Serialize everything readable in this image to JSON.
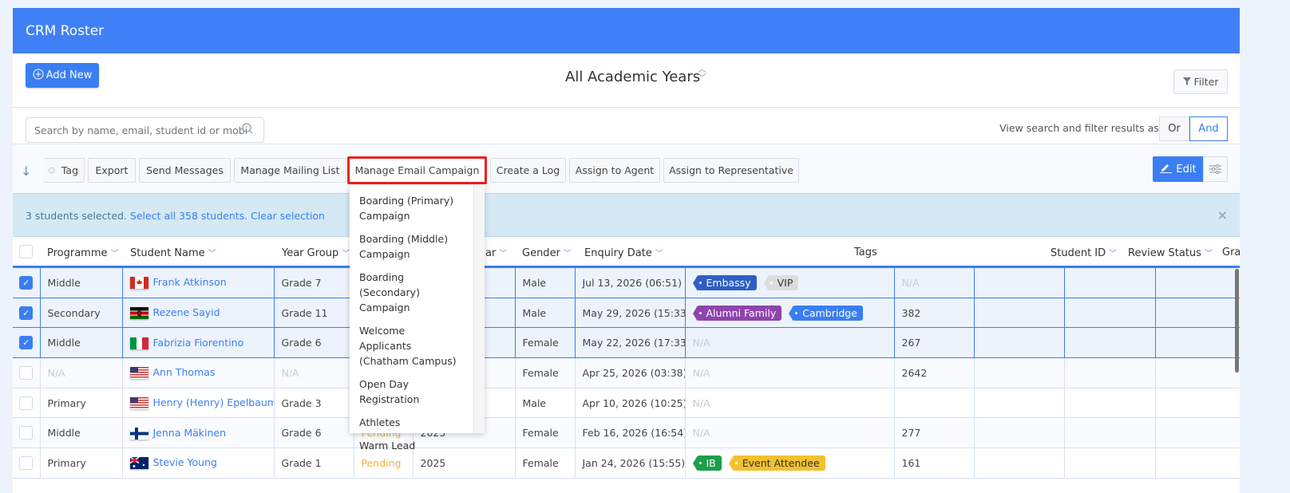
{
  "header": {
    "title": "CRM Roster"
  },
  "toolbar": {
    "add_new": "Add New",
    "academic_years": "All Academic Years",
    "filter": "Filter"
  },
  "search": {
    "placeholder": "Search by name, email, student id or mobi",
    "view_as_label": "View search and filter results as:",
    "or": "Or",
    "and": "And",
    "selected_mode": "And"
  },
  "actions": {
    "tag": "Tag",
    "export": "Export",
    "send_messages": "Send Messages",
    "manage_mailing_list": "Manage Mailing List",
    "manage_email_campaign": "Manage Email Campaign",
    "create_log": "Create a Log",
    "assign_agent": "Assign to Agent",
    "assign_representative": "Assign to Representative",
    "edit": "Edit"
  },
  "selection": {
    "text": "3 students selected.",
    "select_all": "Select all 358 students.",
    "clear": "Clear selection"
  },
  "dropdown": {
    "items": [
      "Boarding (Primary) Campaign",
      "Boarding (Middle) Campaign",
      "Boarding (Secondary) Campaign",
      "Welcome Applicants (Chatham Campus)",
      "Open Day Registration",
      "Athletes",
      "Warm Lead"
    ]
  },
  "columns": {
    "programme": "Programme",
    "student_name": "Student Name",
    "year_group": "Year Group",
    "entry_year": "ar",
    "gender": "Gender",
    "enquiry_date": "Enquiry Date",
    "tags": "Tags",
    "student_id": "Student ID",
    "review_status": "Review Status",
    "grade": "Grac"
  },
  "colors": {
    "primary": "#3a7ef3",
    "header": "#4080f7",
    "highlight": "#f0201c"
  },
  "rows": [
    {
      "checked": true,
      "programme": "Middle",
      "flag": "canada",
      "name": "Frank Atkinson",
      "year_group": "Grade 7",
      "status": "",
      "entry_year": "",
      "gender": "Male",
      "enquiry": "Jul 13, 2026 (06:51)",
      "tags": [
        {
          "label": "Embassy",
          "color": "#2f5fc4"
        },
        {
          "label": "VIP",
          "color": "#dcdcdc",
          "dark": true
        }
      ],
      "id": "N/A"
    },
    {
      "checked": true,
      "programme": "Secondary",
      "flag": "kenya",
      "name": "Rezene Sayid",
      "year_group": "Grade 11",
      "status": "",
      "entry_year": "",
      "gender": "Male",
      "enquiry": "May 29, 2026 (15:33)",
      "tags": [
        {
          "label": "Alumni Family",
          "color": "#8e44ad"
        },
        {
          "label": "Cambridge",
          "color": "#3a7ef3"
        }
      ],
      "id": "382"
    },
    {
      "checked": true,
      "programme": "Middle",
      "flag": "italy",
      "name": "Fabrizia Fiorentino",
      "year_group": "Grade 6",
      "status": "",
      "entry_year": "",
      "gender": "Female",
      "enquiry": "May 22, 2026 (17:33)",
      "tags": [],
      "id": "267"
    },
    {
      "checked": false,
      "programme": "N/A",
      "flag": "usa",
      "name": "Ann Thomas",
      "year_group": "N/A",
      "status": "",
      "entry_year": "",
      "gender": "Female",
      "enquiry": "Apr 25, 2026 (03:38)",
      "tags": [],
      "id": "2642"
    },
    {
      "checked": false,
      "programme": "Primary",
      "flag": "usa",
      "name": "Henry (Henry) Epelbaum",
      "year_group": "Grade 3",
      "status": "",
      "entry_year": "",
      "gender": "Male",
      "enquiry": "Apr 10, 2026 (10:25)",
      "tags": [],
      "id": ""
    },
    {
      "checked": false,
      "programme": "Middle",
      "flag": "finland",
      "name": "Jenna Mäkinen",
      "year_group": "Grade 6",
      "status": "Pending",
      "entry_year": "2025",
      "gender": "Female",
      "enquiry": "Feb 16, 2026 (16:54)",
      "tags": [],
      "id": "277"
    },
    {
      "checked": false,
      "programme": "Primary",
      "flag": "australia",
      "name": "Stevie Young",
      "year_group": "Grade 1",
      "status": "Pending",
      "entry_year": "2025",
      "gender": "Female",
      "enquiry": "Jan 24, 2026 (15:55)",
      "tags": [
        {
          "label": "IB",
          "color": "#1e9e4a"
        },
        {
          "label": "Event Attendee",
          "color": "#f2c12e",
          "dark": true
        }
      ],
      "id": "161"
    }
  ],
  "na_text": "N/A"
}
